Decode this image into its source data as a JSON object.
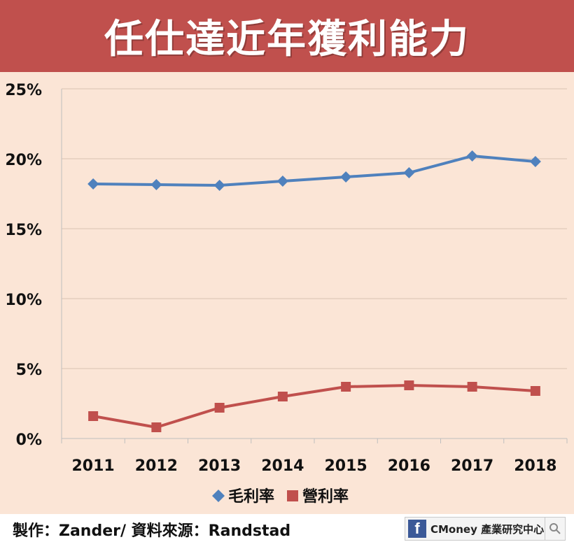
{
  "title": "任仕達近年獲利能力",
  "footer": {
    "credit": "製作：Zander/ 資料來源：Randstad",
    "brand": "CMoney 產業研究中心"
  },
  "icons": {
    "brand": "facebook-icon",
    "search": "search-icon"
  },
  "colors": {
    "title_bg": "#c0504d",
    "plot_bg": "#fbe5d6",
    "gross_margin": "#4f81bd",
    "operating_margin": "#c0504d",
    "grid": "#d9c2b1"
  },
  "chart_data": {
    "type": "line",
    "title": "",
    "xlabel": "",
    "ylabel": "",
    "categories": [
      "2011",
      "2012",
      "2013",
      "2014",
      "2015",
      "2016",
      "2017",
      "2018"
    ],
    "y_ticks": [
      "0%",
      "5%",
      "10%",
      "15%",
      "20%",
      "25%"
    ],
    "ylim": [
      0,
      25
    ],
    "grid": true,
    "legend_position": "bottom",
    "series": [
      {
        "name": "毛利率",
        "marker": "diamond",
        "color": "#4f81bd",
        "values": [
          18.2,
          18.15,
          18.1,
          18.4,
          18.7,
          19.0,
          20.2,
          19.8
        ]
      },
      {
        "name": "營利率",
        "marker": "square",
        "color": "#c0504d",
        "values": [
          1.6,
          0.8,
          2.2,
          3.0,
          3.7,
          3.8,
          3.7,
          3.4
        ]
      }
    ]
  }
}
